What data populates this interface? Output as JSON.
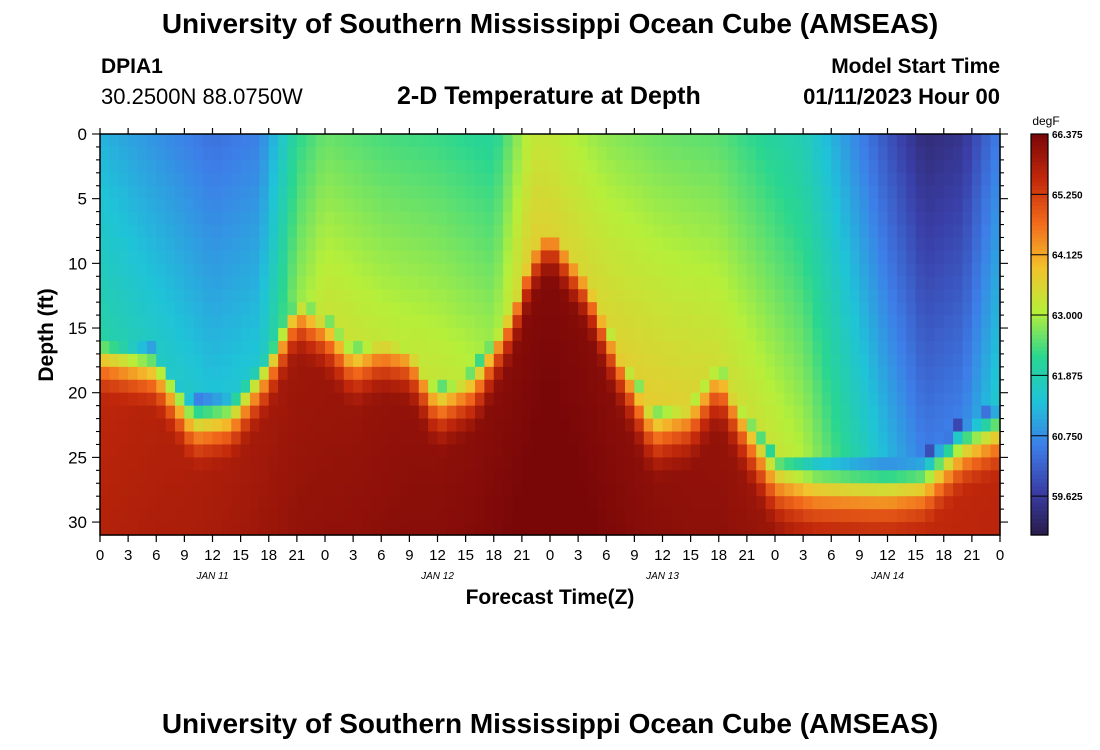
{
  "header": {
    "title": "University of Southern Mississippi Ocean Cube (AMSEAS)",
    "station_id": "DPIA1",
    "coordinates": "30.2500N  88.0750W",
    "subtitle": "2-D Temperature at Depth",
    "model_start_label": "Model Start Time",
    "model_start_value": "01/11/2023 Hour 00"
  },
  "footer": {
    "title": "University of Southern Mississippi Ocean Cube (AMSEAS)"
  },
  "colors": {
    "colormap": [
      "#2a1b4a",
      "#3a3fa8",
      "#3d7ee8",
      "#1fc3d8",
      "#2ad690",
      "#b6ef3a",
      "#f3c12c",
      "#f26a1c",
      "#c1280b",
      "#7a0708"
    ]
  },
  "chart_data": {
    "type": "heatmap",
    "title": "2-D Temperature at Depth",
    "xlabel": "Forecast Time(Z)",
    "ylabel": "Depth (ft)",
    "x_tick_labels": [
      "0",
      "3",
      "6",
      "9",
      "12",
      "15",
      "18",
      "21",
      "0",
      "3",
      "6",
      "9",
      "12",
      "15",
      "18",
      "21",
      "0",
      "3",
      "6",
      "9",
      "12",
      "15",
      "18",
      "21",
      "0",
      "3",
      "6",
      "9",
      "12",
      "15",
      "18",
      "21",
      "0"
    ],
    "x_hours_range": [
      0,
      96
    ],
    "date_labels": [
      {
        "label": "JAN 11",
        "hour": 12
      },
      {
        "label": "JAN 12",
        "hour": 36
      },
      {
        "label": "JAN 13",
        "hour": 60
      },
      {
        "label": "JAN 14",
        "hour": 84
      }
    ],
    "y_ticks": [
      "0",
      "5",
      "10",
      "15",
      "20",
      "25",
      "30"
    ],
    "ylim": [
      0,
      31
    ],
    "depth_step_ft": 1,
    "colorbar": {
      "unit": "degF",
      "min": 58.9,
      "max": 66.375,
      "ticks": [
        "66.375",
        "65.250",
        "64.125",
        "63.000",
        "61.875",
        "60.750",
        "59.625"
      ]
    },
    "surface_temp_degF": [
      {
        "hour": 0,
        "value": 61.2
      },
      {
        "hour": 6,
        "value": 60.8
      },
      {
        "hour": 12,
        "value": 60.4
      },
      {
        "hour": 17,
        "value": 60.6
      },
      {
        "hour": 21,
        "value": 62.2
      },
      {
        "hour": 24,
        "value": 62.6
      },
      {
        "hour": 30,
        "value": 62.4
      },
      {
        "hour": 36,
        "value": 62.3
      },
      {
        "hour": 42,
        "value": 62.1
      },
      {
        "hour": 46,
        "value": 63.2
      },
      {
        "hour": 48,
        "value": 63.2
      },
      {
        "hour": 54,
        "value": 62.8
      },
      {
        "hour": 60,
        "value": 62.6
      },
      {
        "hour": 66,
        "value": 62.5
      },
      {
        "hour": 70,
        "value": 62.2
      },
      {
        "hour": 75,
        "value": 61.8
      },
      {
        "hour": 80,
        "value": 60.8
      },
      {
        "hour": 84,
        "value": 60.0
      },
      {
        "hour": 88,
        "value": 59.3
      },
      {
        "hour": 92,
        "value": 59.5
      },
      {
        "hour": 96,
        "value": 60.6
      }
    ],
    "thermocline_top_ft": [
      {
        "hour": 0,
        "value": 15.5
      },
      {
        "hour": 6,
        "value": 16.5
      },
      {
        "hour": 10,
        "value": 20.5
      },
      {
        "hour": 14,
        "value": 20
      },
      {
        "hour": 18,
        "value": 16.5
      },
      {
        "hour": 21,
        "value": 12.5
      },
      {
        "hour": 24,
        "value": 14
      },
      {
        "hour": 27,
        "value": 16.5
      },
      {
        "hour": 30,
        "value": 15.5
      },
      {
        "hour": 33,
        "value": 16
      },
      {
        "hour": 36,
        "value": 19.5
      },
      {
        "hour": 40,
        "value": 18
      },
      {
        "hour": 44,
        "value": 13
      },
      {
        "hour": 46,
        "value": 9
      },
      {
        "hour": 48,
        "value": 7
      },
      {
        "hour": 52,
        "value": 11
      },
      {
        "hour": 55,
        "value": 16
      },
      {
        "hour": 59,
        "value": 21.5
      },
      {
        "hour": 63,
        "value": 20.5
      },
      {
        "hour": 66,
        "value": 17.5
      },
      {
        "hour": 69,
        "value": 21.5
      },
      {
        "hour": 72,
        "value": 25
      },
      {
        "hour": 76,
        "value": 25.5
      },
      {
        "hour": 84,
        "value": 25
      },
      {
        "hour": 88,
        "value": 24.5
      },
      {
        "hour": 92,
        "value": 22
      },
      {
        "hour": 96,
        "value": 21
      }
    ],
    "bottom_temp_degF": [
      {
        "hour": 0,
        "value": 65.6
      },
      {
        "hour": 24,
        "value": 66.0
      },
      {
        "hour": 48,
        "value": 66.3
      },
      {
        "hour": 72,
        "value": 66.0
      },
      {
        "hour": 74,
        "value": 65.8
      },
      {
        "hour": 84,
        "value": 65.5
      },
      {
        "hour": 96,
        "value": 65.6
      }
    ]
  }
}
